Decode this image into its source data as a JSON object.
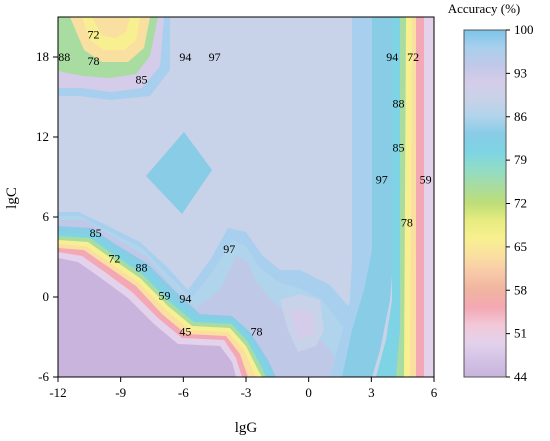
{
  "chart_data": {
    "type": "contour",
    "xlabel": "lgG",
    "ylabel": "lgC",
    "xlim": [
      -12,
      6
    ],
    "ylim": [
      -6,
      21
    ],
    "xticks": [
      "-12",
      "-9",
      "-6",
      "-3",
      "0",
      "3",
      "6"
    ],
    "yticks": [
      "-6",
      "0",
      "6",
      "12",
      "18"
    ],
    "colorbar": {
      "title": "Accuracy (%)",
      "range": [
        44,
        100
      ],
      "ticks": [
        "44",
        "51",
        "58",
        "65",
        "72",
        "79",
        "86",
        "93",
        "100"
      ],
      "colors": [
        "#c8b4dc",
        "#d4c2e6",
        "#e4d2ec",
        "#f2c8d8",
        "#f4a8b4",
        "#f0b4a0",
        "#f8c8a8",
        "#fae0a0",
        "#f8f090",
        "#e8ec80",
        "#bede78",
        "#a8dca0",
        "#90dcc8",
        "#7ed4e4",
        "#88cce6",
        "#b0d4ec",
        "#c8d2e8",
        "#d4cce8",
        "#c0c8e8",
        "#a8d0ee",
        "#7cc4e8"
      ]
    },
    "contour_labels": [
      {
        "text": "88",
        "x": -11.7,
        "y": 18
      },
      {
        "text": "72",
        "x": -10.3,
        "y": 19.7
      },
      {
        "text": "78",
        "x": -10.3,
        "y": 17.7
      },
      {
        "text": "85",
        "x": -8.0,
        "y": 16.3
      },
      {
        "text": "94",
        "x": -5.9,
        "y": 18
      },
      {
        "text": "97",
        "x": -4.5,
        "y": 18
      },
      {
        "text": "94",
        "x": 4.0,
        "y": 18
      },
      {
        "text": "72",
        "x": 5.0,
        "y": 18
      },
      {
        "text": "88",
        "x": 4.3,
        "y": 14.5
      },
      {
        "text": "85",
        "x": 4.3,
        "y": 11.2
      },
      {
        "text": "97",
        "x": 3.5,
        "y": 8.8
      },
      {
        "text": "59",
        "x": 5.6,
        "y": 8.8
      },
      {
        "text": "78",
        "x": 4.7,
        "y": 5.6
      },
      {
        "text": "85",
        "x": -10.2,
        "y": 4.8
      },
      {
        "text": "97",
        "x": -3.8,
        "y": 3.6
      },
      {
        "text": "72",
        "x": -9.3,
        "y": 2.9
      },
      {
        "text": "88",
        "x": -8.0,
        "y": 2.2
      },
      {
        "text": "59",
        "x": -6.9,
        "y": 0.1
      },
      {
        "text": "94",
        "x": -5.9,
        "y": -0.1
      },
      {
        "text": "45",
        "x": -5.9,
        "y": -2.6
      },
      {
        "text": "78",
        "x": -2.5,
        "y": -2.6
      }
    ]
  }
}
